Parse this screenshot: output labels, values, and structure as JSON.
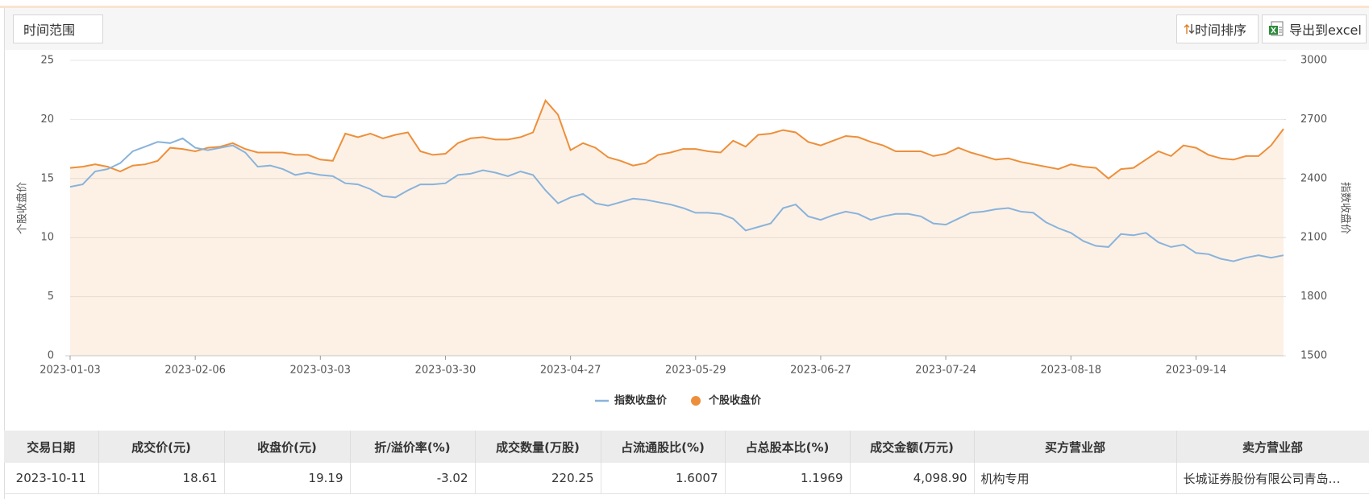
{
  "toolbar": {
    "time_range": "时间范围",
    "sort_button": "时间排序",
    "export_button": "导出到excel"
  },
  "chart_data": {
    "type": "line",
    "categories": [
      "2023-01-03",
      null,
      null,
      null,
      null,
      null,
      null,
      null,
      null,
      null,
      "2023-02-06",
      null,
      null,
      null,
      null,
      null,
      null,
      null,
      null,
      null,
      "2023-03-03",
      null,
      null,
      null,
      null,
      null,
      null,
      null,
      null,
      null,
      "2023-03-30",
      null,
      null,
      null,
      null,
      null,
      null,
      null,
      null,
      null,
      "2023-04-27",
      null,
      null,
      null,
      null,
      null,
      null,
      null,
      null,
      null,
      "2023-05-29",
      null,
      null,
      null,
      null,
      null,
      null,
      null,
      null,
      null,
      "2023-06-27",
      null,
      null,
      null,
      null,
      null,
      null,
      null,
      null,
      null,
      "2023-07-24",
      null,
      null,
      null,
      null,
      null,
      null,
      null,
      null,
      null,
      "2023-08-18",
      null,
      null,
      null,
      null,
      null,
      null,
      null,
      null,
      null,
      "2023-09-14",
      null,
      null,
      null,
      null,
      null,
      null,
      null
    ],
    "series": [
      {
        "name": "指数收盘价",
        "color": "#89b3db",
        "axis": "y2",
        "values": [
          2358,
          2370,
          2436,
          2448,
          2478,
          2538,
          2562,
          2586,
          2580,
          2604,
          2556,
          2544,
          2556,
          2568,
          2532,
          2460,
          2466,
          2448,
          2418,
          2430,
          2418,
          2412,
          2376,
          2370,
          2346,
          2310,
          2304,
          2340,
          2370,
          2370,
          2376,
          2418,
          2424,
          2442,
          2430,
          2412,
          2436,
          2418,
          2340,
          2274,
          2304,
          2322,
          2274,
          2262,
          2280,
          2298,
          2292,
          2280,
          2268,
          2250,
          2226,
          2226,
          2220,
          2196,
          2136,
          2154,
          2172,
          2250,
          2268,
          2208,
          2190,
          2214,
          2232,
          2220,
          2190,
          2208,
          2220,
          2220,
          2208,
          2172,
          2166,
          2196,
          2226,
          2232,
          2244,
          2250,
          2232,
          2226,
          2178,
          2148,
          2124,
          2082,
          2058,
          2052,
          2118,
          2112,
          2124,
          2076,
          2052,
          2064,
          2022,
          2016,
          1992,
          1980,
          1998,
          2010,
          1998,
          2010
        ]
      },
      {
        "name": "个股收盘价",
        "color": "#ed8f3a",
        "area": true,
        "values": [
          15.9,
          16.0,
          16.2,
          16.0,
          15.6,
          16.1,
          16.2,
          16.5,
          17.6,
          17.5,
          17.3,
          17.6,
          17.7,
          18.0,
          17.5,
          17.2,
          17.2,
          17.2,
          17.0,
          17.0,
          16.6,
          16.5,
          18.8,
          18.5,
          18.8,
          18.4,
          18.7,
          18.9,
          17.3,
          17.0,
          17.1,
          18.0,
          18.4,
          18.5,
          18.3,
          18.3,
          18.5,
          18.9,
          21.6,
          20.4,
          17.4,
          18.0,
          17.6,
          16.8,
          16.5,
          16.1,
          16.3,
          17.0,
          17.2,
          17.5,
          17.5,
          17.3,
          17.2,
          18.2,
          17.7,
          18.7,
          18.8,
          19.1,
          18.9,
          18.1,
          17.8,
          18.2,
          18.6,
          18.5,
          18.1,
          17.8,
          17.3,
          17.3,
          17.3,
          16.9,
          17.1,
          17.6,
          17.2,
          16.9,
          16.6,
          16.7,
          16.4,
          16.2,
          16.0,
          15.8,
          16.2,
          16.0,
          15.9,
          15.0,
          15.8,
          15.9,
          16.6,
          17.3,
          16.9,
          17.8,
          17.6,
          17.0,
          16.7,
          16.6,
          16.9,
          16.9,
          17.8,
          19.2
        ]
      }
    ],
    "ylabel": "个股收盘价",
    "y2label": "指数收盘价",
    "ylim": [
      0,
      25
    ],
    "yticks": [
      0,
      5,
      10,
      15,
      20,
      25
    ],
    "y2lim": [
      1500,
      3000
    ],
    "y2ticks": [
      1500,
      1800,
      2100,
      2400,
      2700,
      3000
    ],
    "grid": true,
    "legend": "bottom"
  },
  "table": {
    "columns": [
      "交易日期",
      "成交价(元)",
      "收盘价(元)",
      "折/溢价率(%)",
      "成交数量(万股)",
      "占流通股比(%)",
      "占总股本比(%)",
      "成交金额(万元)",
      "买方营业部",
      "卖方营业部"
    ],
    "rows": [
      [
        "2023-10-11",
        "18.61",
        "19.19",
        "-3.02",
        "220.25",
        "1.6007",
        "1.1969",
        "4,098.90",
        "机构专用",
        "长城证券股份有限公司青岛…"
      ]
    ]
  }
}
